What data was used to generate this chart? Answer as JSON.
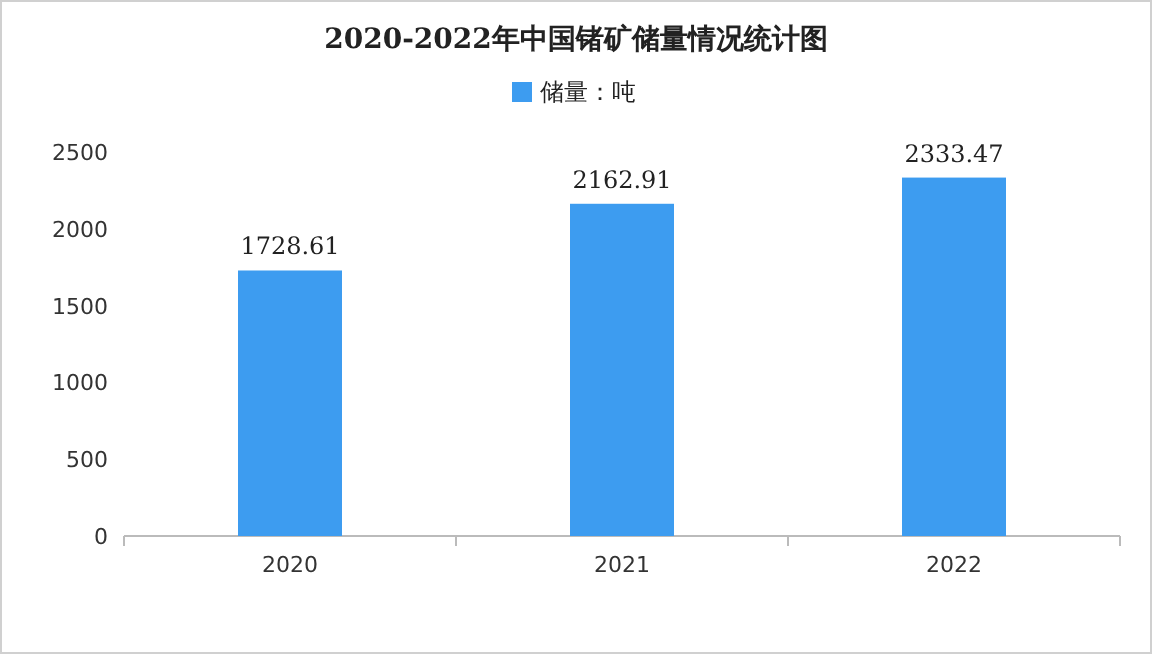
{
  "chart_data": {
    "type": "bar",
    "title": "2020-2022年中国锗矿储量情况统计图",
    "categories": [
      "2020",
      "2021",
      "2022"
    ],
    "series": [
      {
        "name": "储量：吨",
        "color": "#3d9cf0",
        "values": [
          1728.61,
          2162.91,
          2333.47
        ]
      }
    ],
    "ylim": [
      0,
      2500
    ],
    "yticks": [
      0,
      500,
      1000,
      1500,
      2000,
      2500
    ],
    "data_labels": true,
    "legend": "top",
    "grid": false
  }
}
